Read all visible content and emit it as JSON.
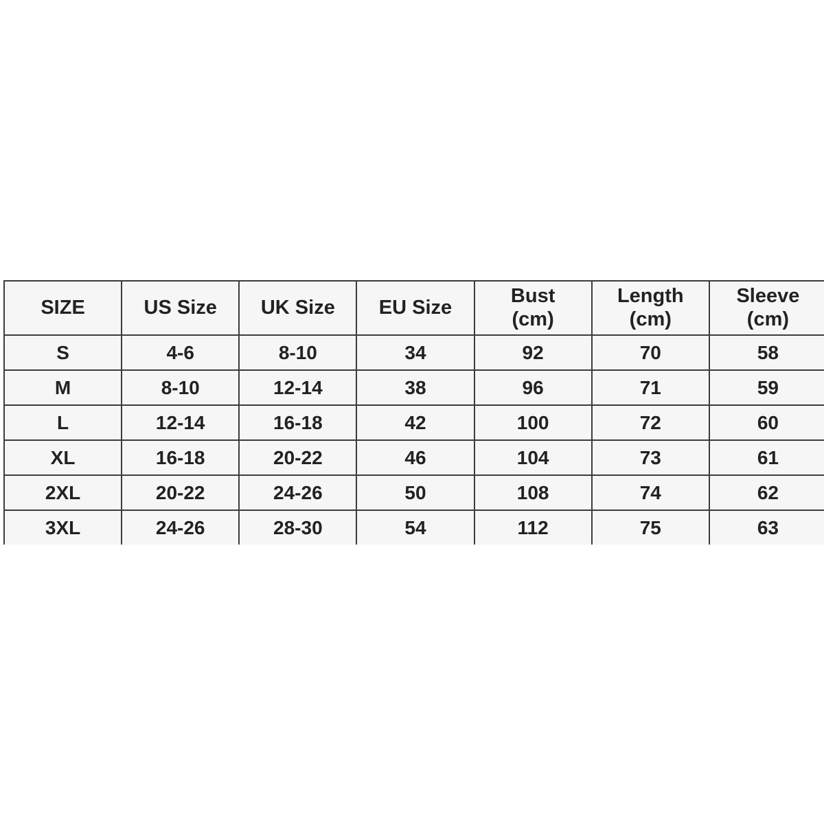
{
  "colors": {
    "page_background": "#ffffff",
    "cell_background": "#f6f6f6",
    "border": "#3c3c3c",
    "text": "#222222"
  },
  "chart_data": {
    "type": "table",
    "columns": [
      {
        "key": "size",
        "label": "SIZE",
        "sub": ""
      },
      {
        "key": "us-size",
        "label": "US Size",
        "sub": ""
      },
      {
        "key": "uk-size",
        "label": "UK Size",
        "sub": ""
      },
      {
        "key": "eu-size",
        "label": "EU Size",
        "sub": ""
      },
      {
        "key": "bust",
        "label": "Bust",
        "sub": "(cm)"
      },
      {
        "key": "length",
        "label": "Length",
        "sub": "(cm)"
      },
      {
        "key": "sleeve",
        "label": "Sleeve",
        "sub": "(cm)"
      }
    ],
    "rows": [
      [
        "S",
        "4-6",
        "8-10",
        "34",
        "92",
        "70",
        "58"
      ],
      [
        "M",
        "8-10",
        "12-14",
        "38",
        "96",
        "71",
        "59"
      ],
      [
        "L",
        "12-14",
        "16-18",
        "42",
        "100",
        "72",
        "60"
      ],
      [
        "XL",
        "16-18",
        "20-22",
        "46",
        "104",
        "73",
        "61"
      ],
      [
        "2XL",
        "20-22",
        "24-26",
        "50",
        "108",
        "74",
        "62"
      ],
      [
        "3XL",
        "24-26",
        "28-30",
        "54",
        "112",
        "75",
        "63"
      ]
    ]
  }
}
